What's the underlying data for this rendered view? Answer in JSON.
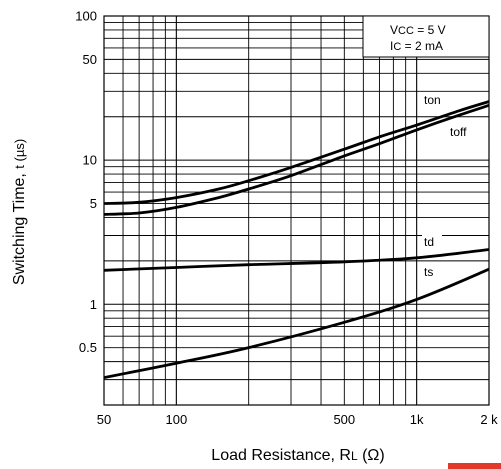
{
  "chart_data": {
    "type": "line",
    "x_scale": "log",
    "y_scale": "log",
    "xlim": [
      50,
      2000
    ],
    "ylim": [
      0.2,
      100
    ],
    "xlabel_main": "Load Resistance, R",
    "xlabel_sub": "L",
    "xlabel_unit": " (Ω)",
    "ylabel_main": "Switching Time, ",
    "ylabel_unit": "t (µs)",
    "x_ticks": [
      {
        "value": 50,
        "label": "50"
      },
      {
        "value": 100,
        "label": "100"
      },
      {
        "value": 500,
        "label": "500"
      },
      {
        "value": 1000,
        "label": "1k"
      },
      {
        "value": 2000,
        "label": "2 k"
      }
    ],
    "y_ticks": [
      {
        "value": 100,
        "label": "100"
      },
      {
        "value": 50,
        "label": "50"
      },
      {
        "value": 10,
        "label": "10"
      },
      {
        "value": 5,
        "label": "5"
      },
      {
        "value": 1,
        "label": "1"
      },
      {
        "value": 0.5,
        "label": "0.5"
      }
    ],
    "conditions": {
      "line1_main": "V",
      "line1_sub": "CC",
      "line1_value": " = 5 V",
      "line2_main": "I",
      "line2_sub": "C",
      "line2_value": " = 2 mA"
    },
    "grid": true,
    "series": [
      {
        "name": "ton",
        "x": [
          50,
          70,
          100,
          150,
          200,
          300,
          500,
          700,
          1000,
          1500,
          2000
        ],
        "y": [
          5.0,
          5.1,
          5.5,
          6.3,
          7.2,
          8.9,
          11.9,
          14.5,
          17.5,
          22.0,
          25.5
        ]
      },
      {
        "name": "toff",
        "x": [
          50,
          70,
          100,
          150,
          200,
          300,
          500,
          700,
          1000,
          1500,
          2000
        ],
        "y": [
          4.2,
          4.3,
          4.7,
          5.5,
          6.3,
          7.8,
          10.7,
          13.0,
          16.2,
          20.5,
          24.0
        ]
      },
      {
        "name": "td",
        "x": [
          50,
          100,
          200,
          500,
          1000,
          2000
        ],
        "y": [
          1.72,
          1.8,
          1.88,
          1.97,
          2.1,
          2.4
        ]
      },
      {
        "name": "ts",
        "x": [
          50,
          100,
          200,
          500,
          1000,
          2000
        ],
        "y": [
          0.31,
          0.39,
          0.5,
          0.75,
          1.08,
          1.75
        ]
      }
    ],
    "series_label_text": {
      "ton": "ton",
      "toff": "toff",
      "td": "td",
      "ts": "ts"
    },
    "accent_color": "#e03a2a"
  }
}
